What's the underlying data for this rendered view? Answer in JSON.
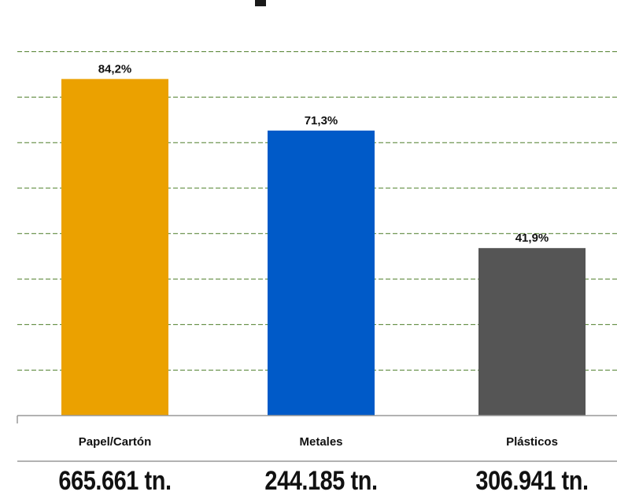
{
  "chart_data": {
    "type": "bar",
    "categories": [
      "Papel/Cartón",
      "Metales",
      "Plásticos"
    ],
    "values": [
      84.2,
      71.3,
      41.9
    ],
    "value_labels": [
      "84,2%",
      "71,3%",
      "41,9%"
    ],
    "colors": [
      "#EBA100",
      "#005AC8",
      "#555555"
    ],
    "ylim": [
      0,
      100
    ],
    "grid": "dashed-horizontal",
    "gridline_color": "#4E7F2A",
    "title": "",
    "xlabel": "",
    "ylabel": ""
  },
  "tonnages": [
    "665.661 tn.",
    "244.185 tn.",
    "306.941 tn."
  ]
}
